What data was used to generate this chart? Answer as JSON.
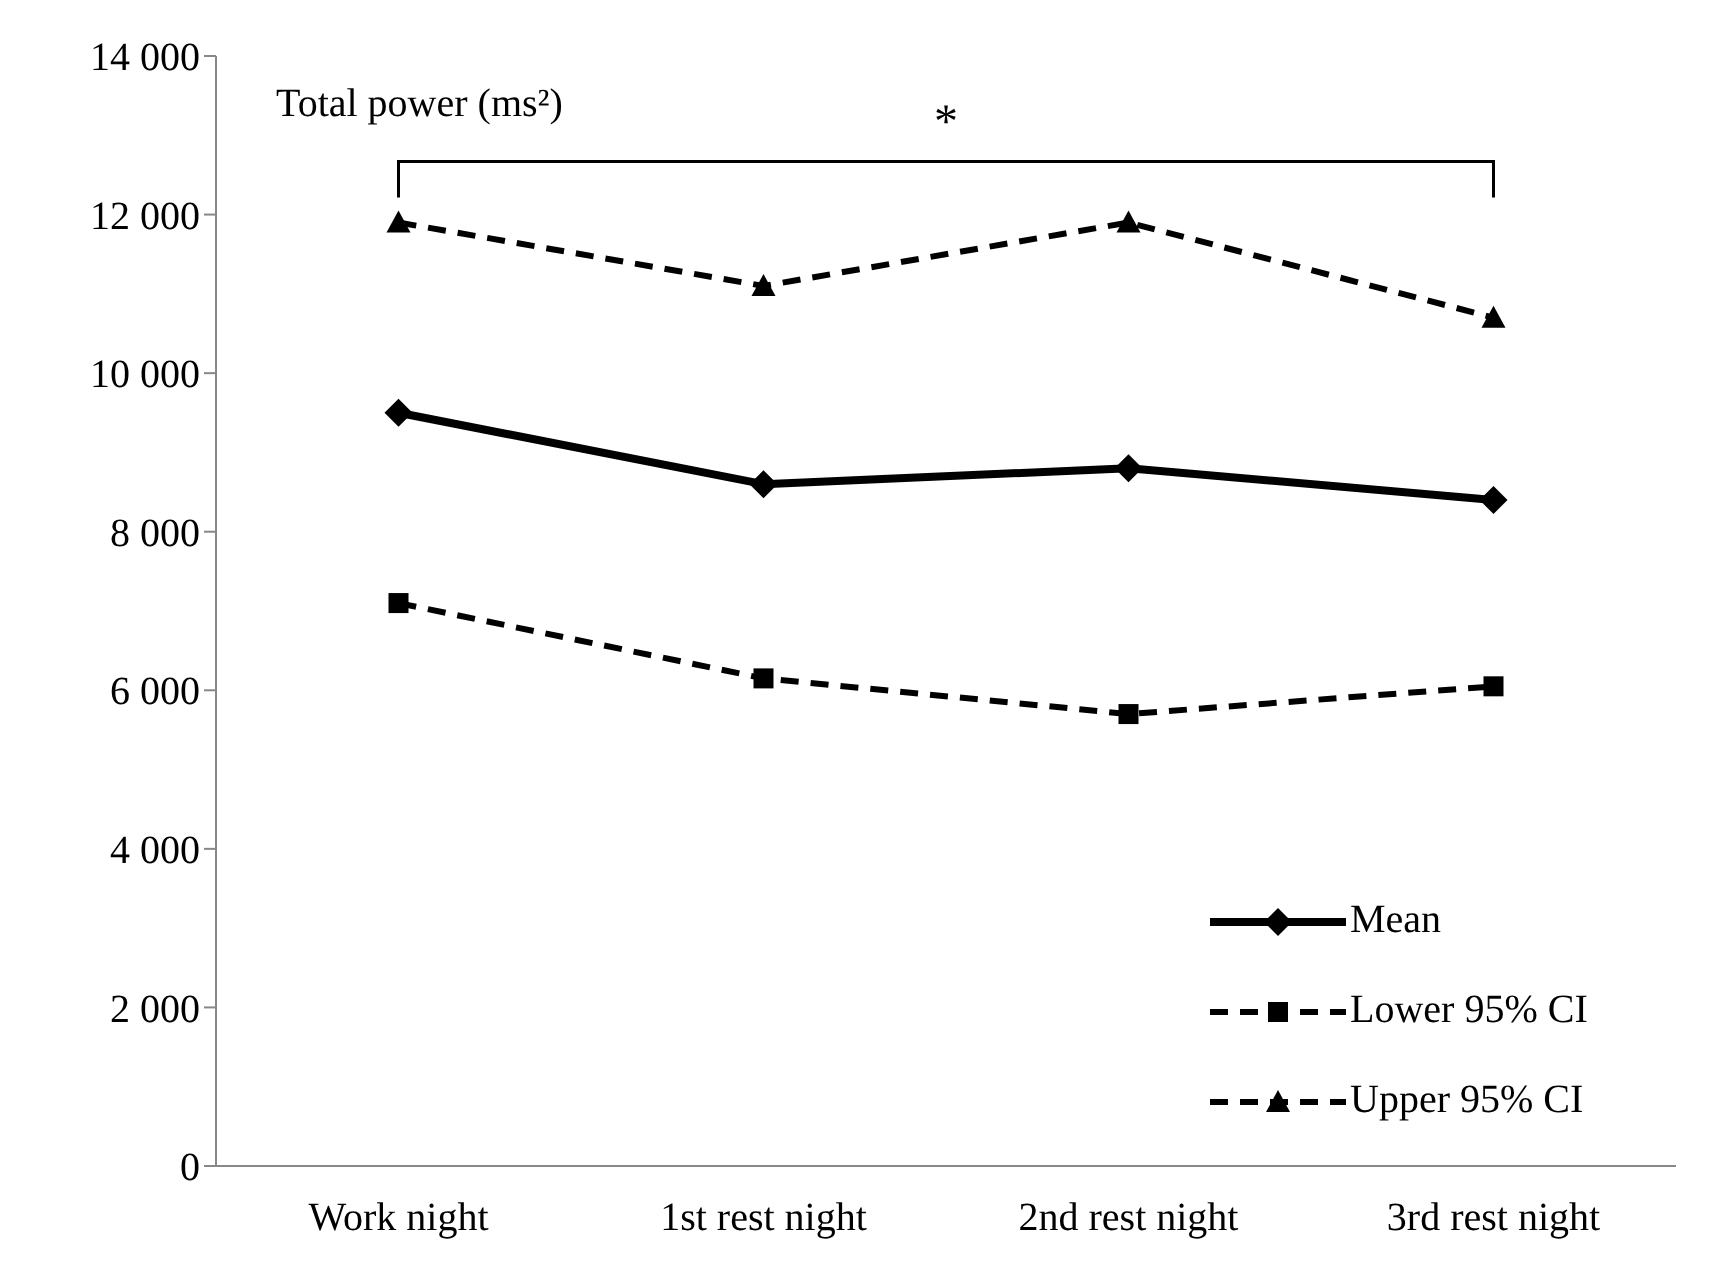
{
  "chart_data": {
    "type": "line",
    "ylabel": "Total power (ms²)",
    "categories": [
      "Work night",
      "1st rest night",
      "2nd rest night",
      "3rd rest night"
    ],
    "series": [
      {
        "name": "Mean",
        "color": "#000000",
        "values": [
          9500,
          8600,
          8800,
          8400
        ],
        "marker": "diamond",
        "line_style": "solid"
      },
      {
        "name": "Lower 95% CI",
        "color": "#000000",
        "values": [
          7100,
          6150,
          5700,
          6050
        ],
        "marker": "square",
        "line_style": "dashed"
      },
      {
        "name": "Upper 95% CI",
        "color": "#000000",
        "values": [
          11900,
          11100,
          11900,
          10700
        ],
        "marker": "triangle",
        "line_style": "dashed"
      }
    ],
    "ylim": [
      0,
      14000
    ],
    "yticks": [
      {
        "value": 0,
        "label": "0"
      },
      {
        "value": 2000,
        "label": "2 000"
      },
      {
        "value": 4000,
        "label": "4 000"
      },
      {
        "value": 6000,
        "label": "6 000"
      },
      {
        "value": 8000,
        "label": "8 000"
      },
      {
        "value": 10000,
        "label": "10 000"
      },
      {
        "value": 12000,
        "label": "12 000"
      },
      {
        "value": 14000,
        "label": "14 000"
      }
    ],
    "annotations": [
      "*"
    ],
    "legend": "bottom right",
    "grid": false
  }
}
